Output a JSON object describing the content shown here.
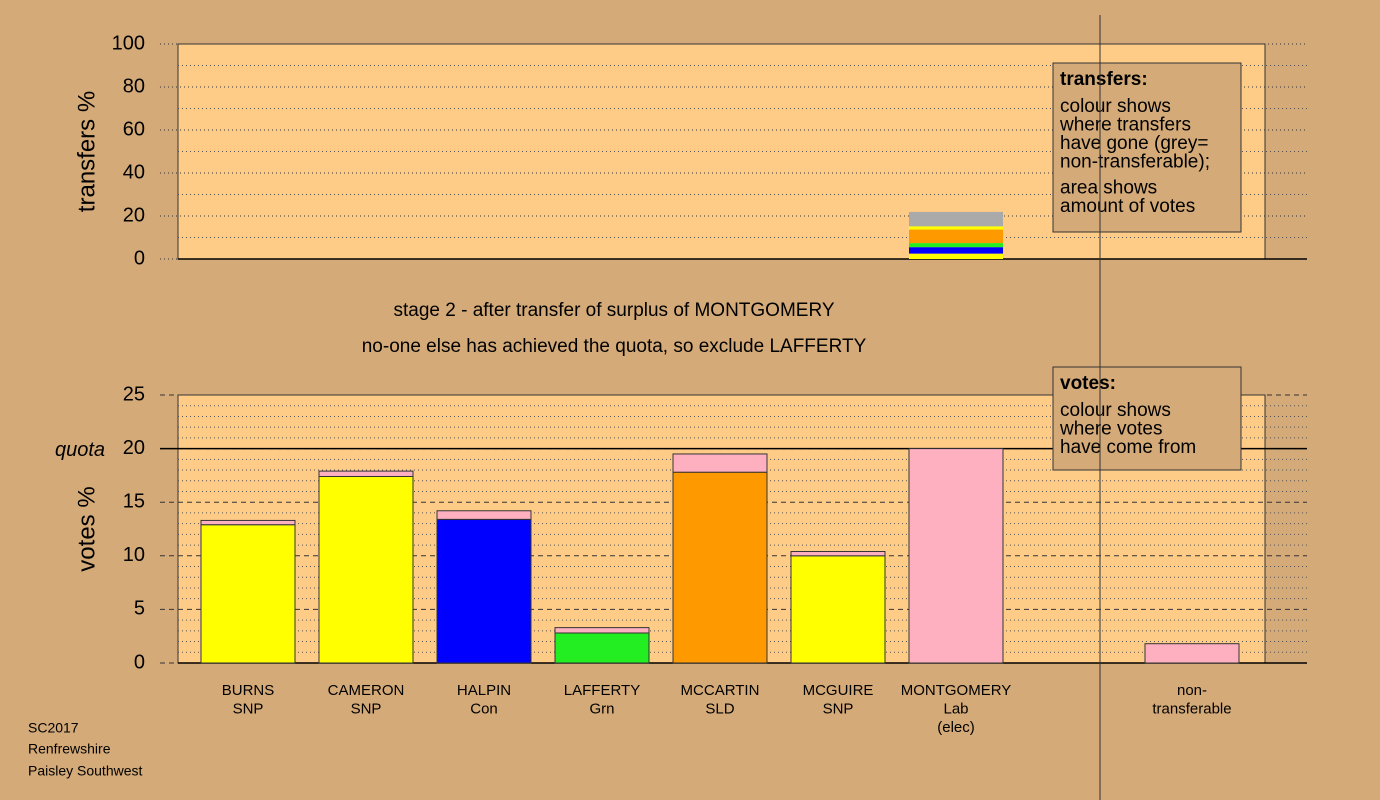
{
  "chart_data": [
    {
      "type": "stacked_bar",
      "ylabel": "transfers %",
      "ylim": [
        0,
        100
      ],
      "yticks": [
        0,
        20,
        40,
        60,
        80,
        100
      ],
      "minor_yticks": [
        10,
        30,
        50,
        70,
        90
      ],
      "series": [
        {
          "color": "#ffff00",
          "values": [
            null,
            null,
            null,
            null,
            null,
            null,
            1.5,
            null,
            null
          ]
        },
        {
          "color": "#ffff00",
          "values": [
            null,
            null,
            null,
            null,
            null,
            null,
            1.0,
            null,
            null
          ]
        },
        {
          "color": "#0000ff",
          "values": [
            null,
            null,
            null,
            null,
            null,
            null,
            3.0,
            null,
            null
          ]
        },
        {
          "color": "#22ee22",
          "values": [
            null,
            null,
            null,
            null,
            null,
            null,
            1.9,
            null,
            null
          ]
        },
        {
          "color": "#ff9900",
          "values": [
            null,
            null,
            null,
            null,
            null,
            null,
            6.3,
            null,
            null
          ]
        },
        {
          "color": "#ffff00",
          "values": [
            null,
            null,
            null,
            null,
            null,
            null,
            1.5,
            null,
            null
          ]
        },
        {
          "color": "#aaaaaa",
          "values": [
            null,
            null,
            null,
            null,
            null,
            null,
            6.7,
            null,
            null
          ]
        }
      ],
      "legend": {
        "title": "transfers:",
        "paragraphs": [
          [
            "colour shows",
            "where transfers",
            "have gone (grey=",
            "non-transferable);"
          ],
          [
            "area shows",
            "amount of votes"
          ]
        ]
      }
    },
    {
      "type": "stacked_bar",
      "ylabel": "votes %",
      "ylim": [
        0,
        25
      ],
      "yticks": [
        0,
        5,
        10,
        15,
        20,
        25
      ],
      "minor_yticks": [
        1,
        2,
        3,
        4,
        6,
        7,
        8,
        9,
        11,
        12,
        13,
        14,
        16,
        17,
        18,
        19,
        21,
        22,
        23,
        24
      ],
      "quota": {
        "value": 20,
        "label": "quota"
      },
      "categories": [
        [
          "BURNS",
          "SNP"
        ],
        [
          "CAMERON",
          "SNP"
        ],
        [
          "HALPIN",
          "Con"
        ],
        [
          "LAFFERTY",
          "Grn"
        ],
        [
          "MCCARTIN",
          "SLD"
        ],
        [
          "MCGUIRE",
          "SNP"
        ],
        [
          "MONTGOMERY",
          "Lab",
          "(elec)"
        ],
        null,
        [
          "non-",
          "transferable"
        ]
      ],
      "series": [
        {
          "colors": [
            "#ffff00",
            "#ffff00",
            "#0000ff",
            "#22ee22",
            "#ff9900",
            "#ffff00",
            "#ffb0c0",
            null,
            "#ffb0c0"
          ],
          "values": [
            12.9,
            17.4,
            13.4,
            2.8,
            17.8,
            10.0,
            20.0,
            null,
            0
          ]
        },
        {
          "colors": [
            "#ffb0c0",
            "#ffb0c0",
            "#ffb0c0",
            "#ffb0c0",
            "#ffb0c0",
            "#ffb0c0",
            "#ffb0c0",
            null,
            "#ffb0c0"
          ],
          "values": [
            0.4,
            0.5,
            0.8,
            0.5,
            1.7,
            0.4,
            0,
            null,
            1.8
          ]
        }
      ],
      "legend": {
        "title": "votes:",
        "paragraphs": [
          [
            "colour shows",
            "where votes",
            "have come from"
          ]
        ]
      }
    }
  ],
  "titles": [
    "stage 2 - after transfer of surplus of MONTGOMERY",
    "no-one else has achieved the quota, so exclude LAFFERTY"
  ],
  "footer": [
    "SC2017",
    "Renfrewshire",
    "Paisley Southwest"
  ]
}
